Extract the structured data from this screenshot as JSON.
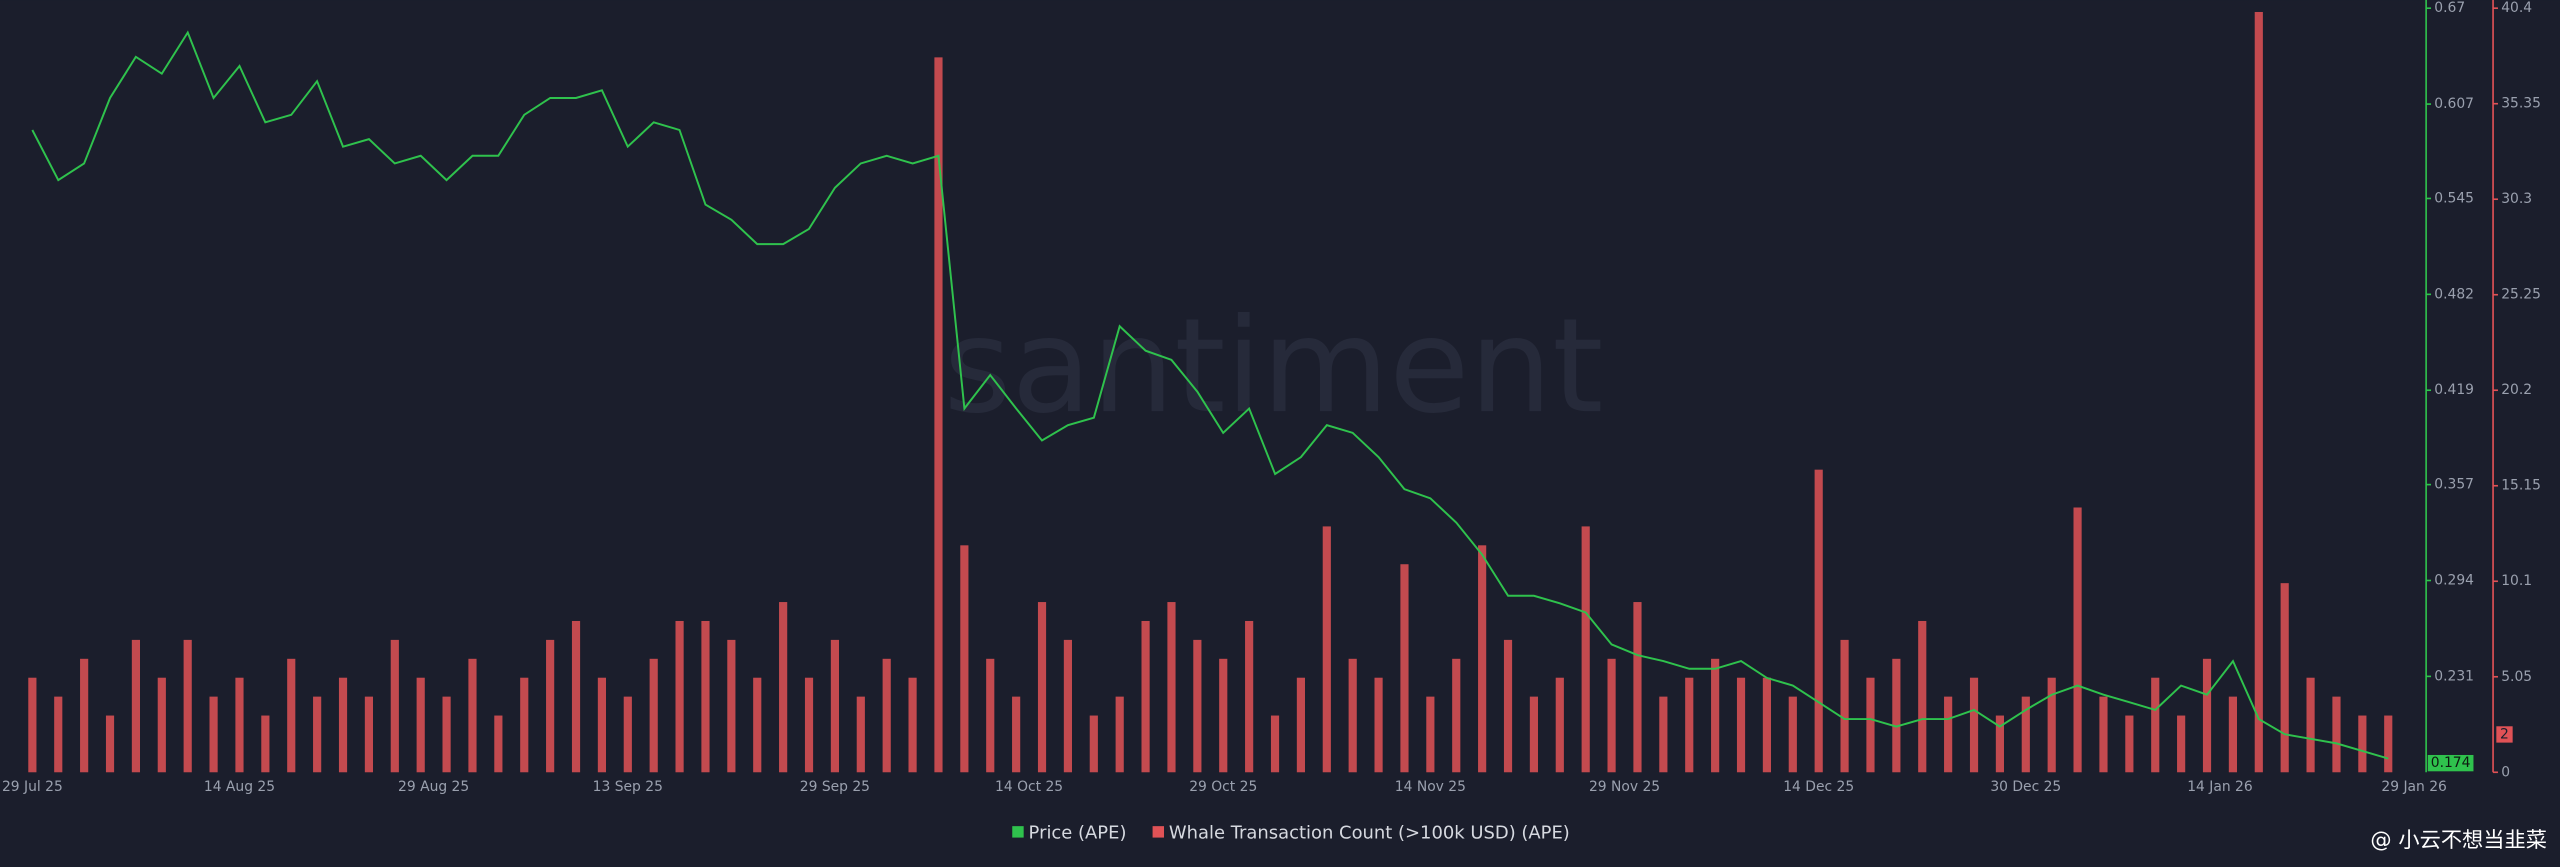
{
  "chart_data": {
    "type": "line_bar",
    "watermark": "santiment",
    "credit": "@ 小云不想当韭菜",
    "x": [
      0,
      2,
      4,
      6,
      8,
      10,
      12,
      14,
      16,
      18,
      20,
      22,
      24,
      26,
      28,
      30,
      32,
      34,
      36,
      38,
      40,
      42,
      44,
      46,
      48,
      50,
      52,
      54,
      56,
      58,
      60,
      62,
      64,
      66,
      68,
      70,
      72,
      74,
      76,
      78,
      80,
      82,
      84,
      86,
      88,
      90,
      92,
      94,
      96,
      98,
      100,
      102,
      104,
      106,
      108,
      110,
      112,
      114,
      116,
      118,
      120,
      122,
      124,
      126,
      128,
      130,
      132,
      134,
      136,
      138,
      140,
      142,
      144,
      146,
      148,
      150,
      152,
      154,
      156,
      158,
      160,
      162,
      164,
      166,
      168,
      170,
      172,
      174,
      176,
      178,
      180,
      182
    ],
    "xlim": [
      -2.5,
      184.8
    ],
    "xticks": [
      {
        "value": 0,
        "label": "29 Jul 25"
      },
      {
        "value": 16,
        "label": "14 Aug 25"
      },
      {
        "value": 31,
        "label": "29 Aug 25"
      },
      {
        "value": 46,
        "label": "13 Sep 25"
      },
      {
        "value": 62,
        "label": "29 Sep 25"
      },
      {
        "value": 77,
        "label": "14 Oct 25"
      },
      {
        "value": 92,
        "label": "29 Oct 25"
      },
      {
        "value": 108,
        "label": "14 Nov 25"
      },
      {
        "value": 123,
        "label": "29 Nov 25"
      },
      {
        "value": 138,
        "label": "14 Dec 25"
      },
      {
        "value": 154,
        "label": "30 Dec 25"
      },
      {
        "value": 169,
        "label": "14 Jan 26"
      },
      {
        "value": 184,
        "label": "29 Jan 26"
      }
    ],
    "ylim": [
      0.168,
      0.67
    ],
    "yticks": [
      0.231,
      0.294,
      0.357,
      0.419,
      0.482,
      0.545,
      0.607,
      0.67
    ],
    "y2lim": [
      0,
      40.4
    ],
    "y2ticks": [
      0,
      5.05,
      10.1,
      15.15,
      20.2,
      25.25,
      30.3,
      35.35,
      40.4
    ],
    "grid": false,
    "legend": "bottom",
    "series": [
      {
        "name": "Price (APE)",
        "color": "#2fc24d",
        "type": "line",
        "current": 0.174,
        "values": [
          0.59,
          0.557,
          0.568,
          0.611,
          0.638,
          0.627,
          0.654,
          0.611,
          0.632,
          0.595,
          0.6,
          0.622,
          0.579,
          0.584,
          0.568,
          0.573,
          0.557,
          0.573,
          0.573,
          0.6,
          0.611,
          0.611,
          0.616,
          0.579,
          0.595,
          0.59,
          0.541,
          0.531,
          0.515,
          0.515,
          0.525,
          0.552,
          0.568,
          0.573,
          0.568,
          0.573,
          0.407,
          0.429,
          0.407,
          0.386,
          0.396,
          0.401,
          0.461,
          0.445,
          0.439,
          0.418,
          0.391,
          0.407,
          0.364,
          0.375,
          0.396,
          0.391,
          0.375,
          0.354,
          0.348,
          0.332,
          0.311,
          0.284,
          0.284,
          0.279,
          0.273,
          0.252,
          0.245,
          0.241,
          0.236,
          0.236,
          0.241,
          0.23,
          0.225,
          0.214,
          0.203,
          0.203,
          0.198,
          0.203,
          0.203,
          0.209,
          0.198,
          0.209,
          0.219,
          0.225,
          0.219,
          0.214,
          0.209,
          0.225,
          0.219,
          0.241,
          0.203,
          0.193,
          0.19,
          0.187,
          0.182,
          0.177
        ]
      },
      {
        "name": "Whale Transaction Count (>100k USD) (APE)",
        "color": "#e05256",
        "type": "bar",
        "axis": "y2",
        "current": 2,
        "values": [
          5,
          4,
          6,
          3,
          7,
          5,
          7,
          4,
          5,
          3,
          6,
          4,
          5,
          4,
          7,
          5,
          4,
          6,
          3,
          5,
          7,
          8,
          5,
          4,
          6,
          8,
          8,
          7,
          5,
          9,
          5,
          7,
          4,
          6,
          5,
          37.8,
          12,
          6,
          4,
          9,
          7,
          3,
          4,
          8,
          9,
          7,
          6,
          8,
          3,
          5,
          13,
          6,
          5,
          11,
          4,
          6,
          12,
          7,
          4,
          5,
          13,
          6,
          9,
          4,
          5,
          6,
          5,
          5,
          4,
          16,
          7,
          5,
          6,
          8,
          4,
          5,
          3,
          4,
          5,
          14,
          4,
          3,
          5,
          3,
          6,
          4,
          40.2,
          10,
          5,
          4,
          3,
          3
        ]
      }
    ]
  }
}
